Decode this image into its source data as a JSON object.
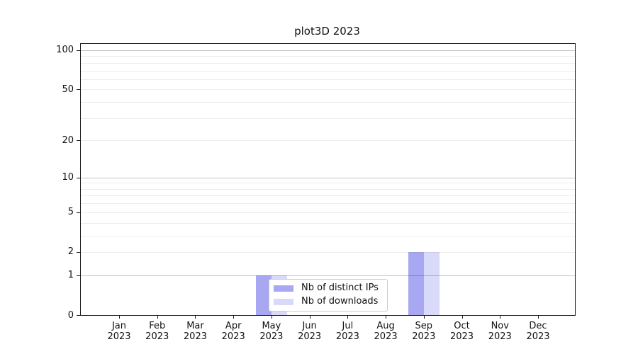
{
  "title": "plot3D 2023",
  "colors": {
    "distinct_ips_bar": "#a8a8f2",
    "downloads_bar": "#d9d9f9",
    "axis": "#1a1a1a",
    "grid_major": "#c3c3c3",
    "grid_minor": "#ececec",
    "legend_border": "#cccccc",
    "background": "#ffffff"
  },
  "chart_data": {
    "type": "bar",
    "title": "plot3D 2023",
    "categories": [
      "Jan 2023",
      "Feb 2023",
      "Mar 2023",
      "Apr 2023",
      "May 2023",
      "Jun 2023",
      "Jul 2023",
      "Aug 2023",
      "Sep 2023",
      "Oct 2023",
      "Nov 2023",
      "Dec 2023"
    ],
    "series": [
      {
        "name": "Nb of distinct IPs",
        "color": "#a8a8f2",
        "values": [
          0,
          0,
          0,
          0,
          1,
          0,
          0,
          0,
          2,
          0,
          0,
          0
        ]
      },
      {
        "name": "Nb of downloads",
        "color": "#d9d9f9",
        "values": [
          0,
          0,
          0,
          0,
          1,
          0,
          0,
          0,
          2,
          0,
          0,
          0
        ]
      }
    ],
    "xlabel": "",
    "ylabel": "",
    "y_scale": "log10(1+x)",
    "y_ticks": [
      0,
      1,
      2,
      5,
      10,
      20,
      50,
      100
    ],
    "y_gridlines_major": [
      1,
      10,
      100
    ],
    "y_gridlines_minor": [
      2,
      3,
      4,
      5,
      6,
      7,
      8,
      9,
      20,
      30,
      40,
      50,
      60,
      70,
      80,
      90
    ],
    "ylim": [
      0,
      113
    ],
    "grid": true,
    "legend_position": "lower center"
  }
}
